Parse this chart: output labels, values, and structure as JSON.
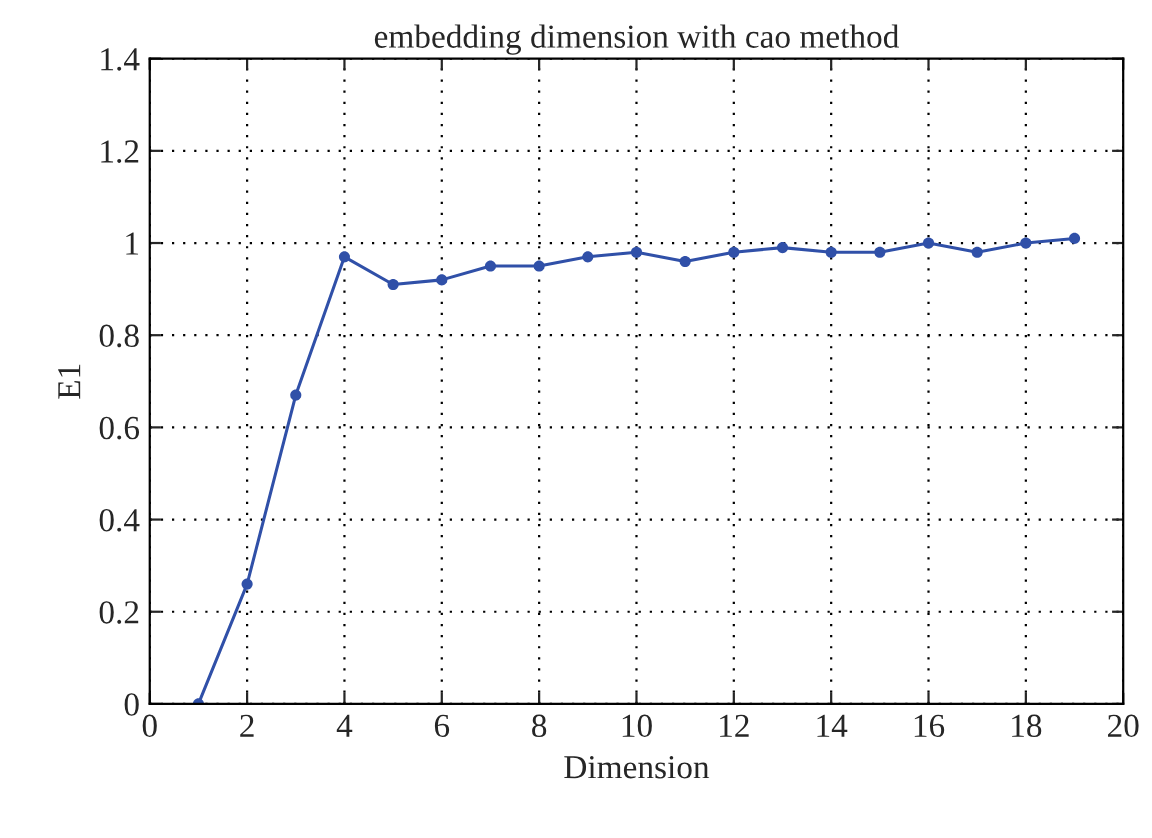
{
  "chart_data": {
    "type": "line",
    "title": "embedding dimension with cao method",
    "xlabel": "Dimension",
    "ylabel": "E1",
    "x": [
      1,
      2,
      3,
      4,
      5,
      6,
      7,
      8,
      9,
      10,
      11,
      12,
      13,
      14,
      15,
      16,
      17,
      18,
      19
    ],
    "series": [
      {
        "color": "#3050a8",
        "values": [
          0,
          0.26,
          0.67,
          0.97,
          0.91,
          0.92,
          0.95,
          0.95,
          0.97,
          0.98,
          0.96,
          0.98,
          0.99,
          0.98,
          0.98,
          1.0,
          0.98,
          1.0,
          1.01
        ]
      }
    ],
    "xlim": [
      0,
      20
    ],
    "xticks": [
      0,
      2,
      4,
      6,
      8,
      10,
      12,
      14,
      16,
      18,
      20
    ],
    "ylim": [
      0,
      1.4
    ],
    "yticks": [
      0,
      0.2,
      0.4,
      0.6,
      0.8,
      1,
      1.2,
      1.4
    ],
    "grid": true,
    "marker": "circle",
    "line_style": "solid"
  }
}
